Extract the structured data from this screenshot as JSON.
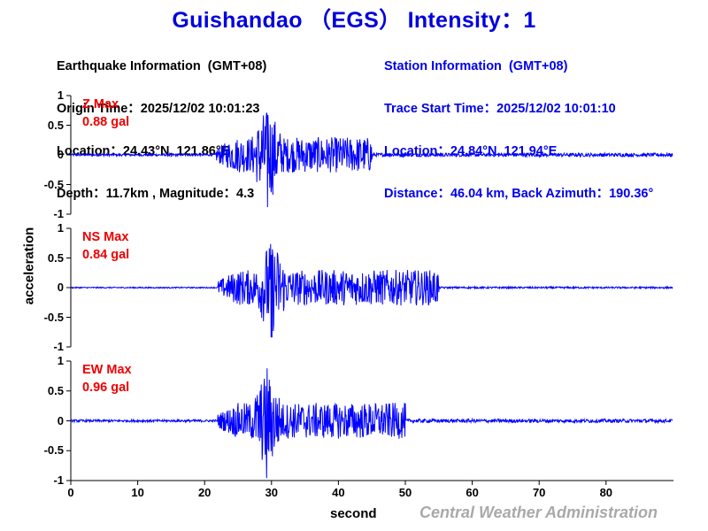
{
  "title": "Guishandao （EGS） Intensity：1",
  "earthquake_info": {
    "heading": "Earthquake Information  (GMT+08)",
    "origin_time": "Origin Time：2025/12/02 10:01:23",
    "location": "Location：24.43°N, 121.86°E",
    "depth_magnitude": "Depth：11.7km , Magnitude：4.3"
  },
  "station_info": {
    "heading": "Station Information  (GMT+08)",
    "trace_start": "Trace Start Time：2025/12/02 10:01:10",
    "location": "Location：24.84°N, 121.94°E",
    "distance": "Distance：46.04 km, Back Azimuth：190.36°"
  },
  "panels": [
    {
      "component": "Z Max",
      "max_value": "0.88 gal"
    },
    {
      "component": "NS Max",
      "max_value": "0.84 gal"
    },
    {
      "component": "EW Max",
      "max_value": "0.96 gal"
    }
  ],
  "y_ticks": [
    "1",
    "0.5",
    "0",
    "-0.5",
    "-1"
  ],
  "x_ticks": [
    "0",
    "10",
    "20",
    "30",
    "40",
    "50",
    "60",
    "70",
    "80"
  ],
  "xlabel": "second",
  "ylabel": "acceleration",
  "footer": "Central Weather Administration",
  "colors": {
    "trace": "#0000ff",
    "title": "#0000dd",
    "max_label": "#ee0000",
    "footer": "#a9a9a9"
  },
  "chart_data": {
    "type": "line",
    "title": "Guishandao (EGS) Intensity: 1",
    "xlabel": "second",
    "ylabel": "acceleration",
    "xlim": [
      0,
      90
    ],
    "ylim": [
      -1,
      1
    ],
    "grid": false,
    "legend": "none",
    "x_ticks": [
      0,
      10,
      20,
      30,
      40,
      50,
      60,
      70,
      80
    ],
    "y_ticks": [
      -1,
      -0.5,
      0,
      0.5,
      1
    ],
    "series": [
      {
        "name": "Z",
        "max_gal": 0.88,
        "p_arrival_s": 21.7,
        "peak_time_s": 29.4,
        "peak_pos": 0.67,
        "peak_neg": -0.88,
        "noise_floor": 0.02,
        "coda_end_s": 45
      },
      {
        "name": "NS",
        "max_gal": 0.84,
        "p_arrival_s": 22.0,
        "peak_time_s": 30.0,
        "peak_pos": 0.55,
        "peak_neg": -0.84,
        "noise_floor": 0.01,
        "coda_end_s": 55
      },
      {
        "name": "EW",
        "max_gal": 0.96,
        "p_arrival_s": 22.0,
        "peak_time_s": 29.3,
        "peak_pos": 0.88,
        "peak_neg": -0.96,
        "noise_floor": 0.02,
        "coda_end_s": 50
      }
    ]
  }
}
